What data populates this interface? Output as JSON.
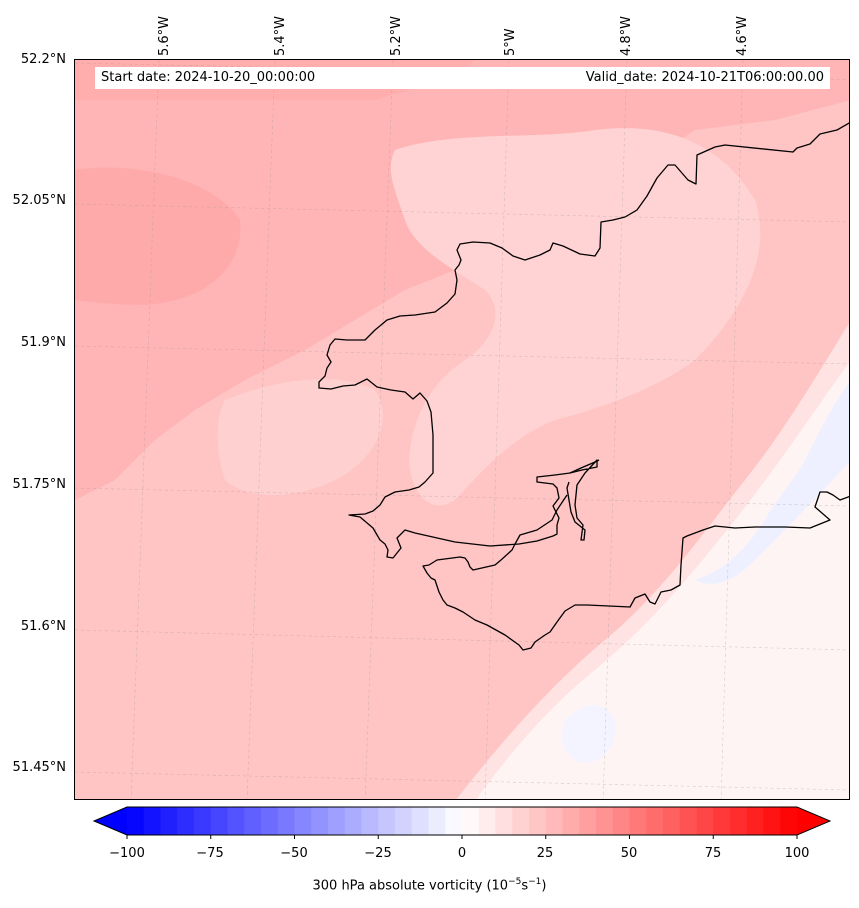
{
  "header": {
    "start_date": "Start date: 2024-10-20_00:00:00",
    "valid_date": "Valid_date: 2024-10-21T06:00:00.00"
  },
  "axes": {
    "longitude_labels": [
      "5.6°W",
      "5.4°W",
      "5.2°W",
      "5°W",
      "4.8°W",
      "4.6°W"
    ],
    "latitude_labels": [
      "52.2°N",
      "52.05°N",
      "51.9°N",
      "51.75°N",
      "51.6°N",
      "51.45°N"
    ],
    "lon_range": [
      -5.75,
      -4.45
    ],
    "lat_range": [
      51.42,
      52.2
    ]
  },
  "colorbar": {
    "label_text": "300 hPa absolute vorticity (10",
    "label_exp1": "−5",
    "label_mid": "s",
    "label_exp2": "−1",
    "label_end": ")",
    "ticks": [
      "−100",
      "−75",
      "−50",
      "−25",
      "0",
      "25",
      "50",
      "75",
      "100"
    ],
    "range": [
      -100,
      100
    ],
    "extend": "both",
    "colors": {
      "negative": "#0000ff",
      "zero": "#ffffff",
      "positive": "#ff0000"
    }
  },
  "map_fields": {
    "description_colors": {
      "strong_positive": "#ffaaaa",
      "moderate_positive": "#ffb3b3",
      "weak_positive": "#ffc4c4",
      "light_positive": "#ffd3d3",
      "near_zero": "#fff6f6",
      "weak_negative": "#eef0ff"
    },
    "coastline_color": "#000000"
  }
}
